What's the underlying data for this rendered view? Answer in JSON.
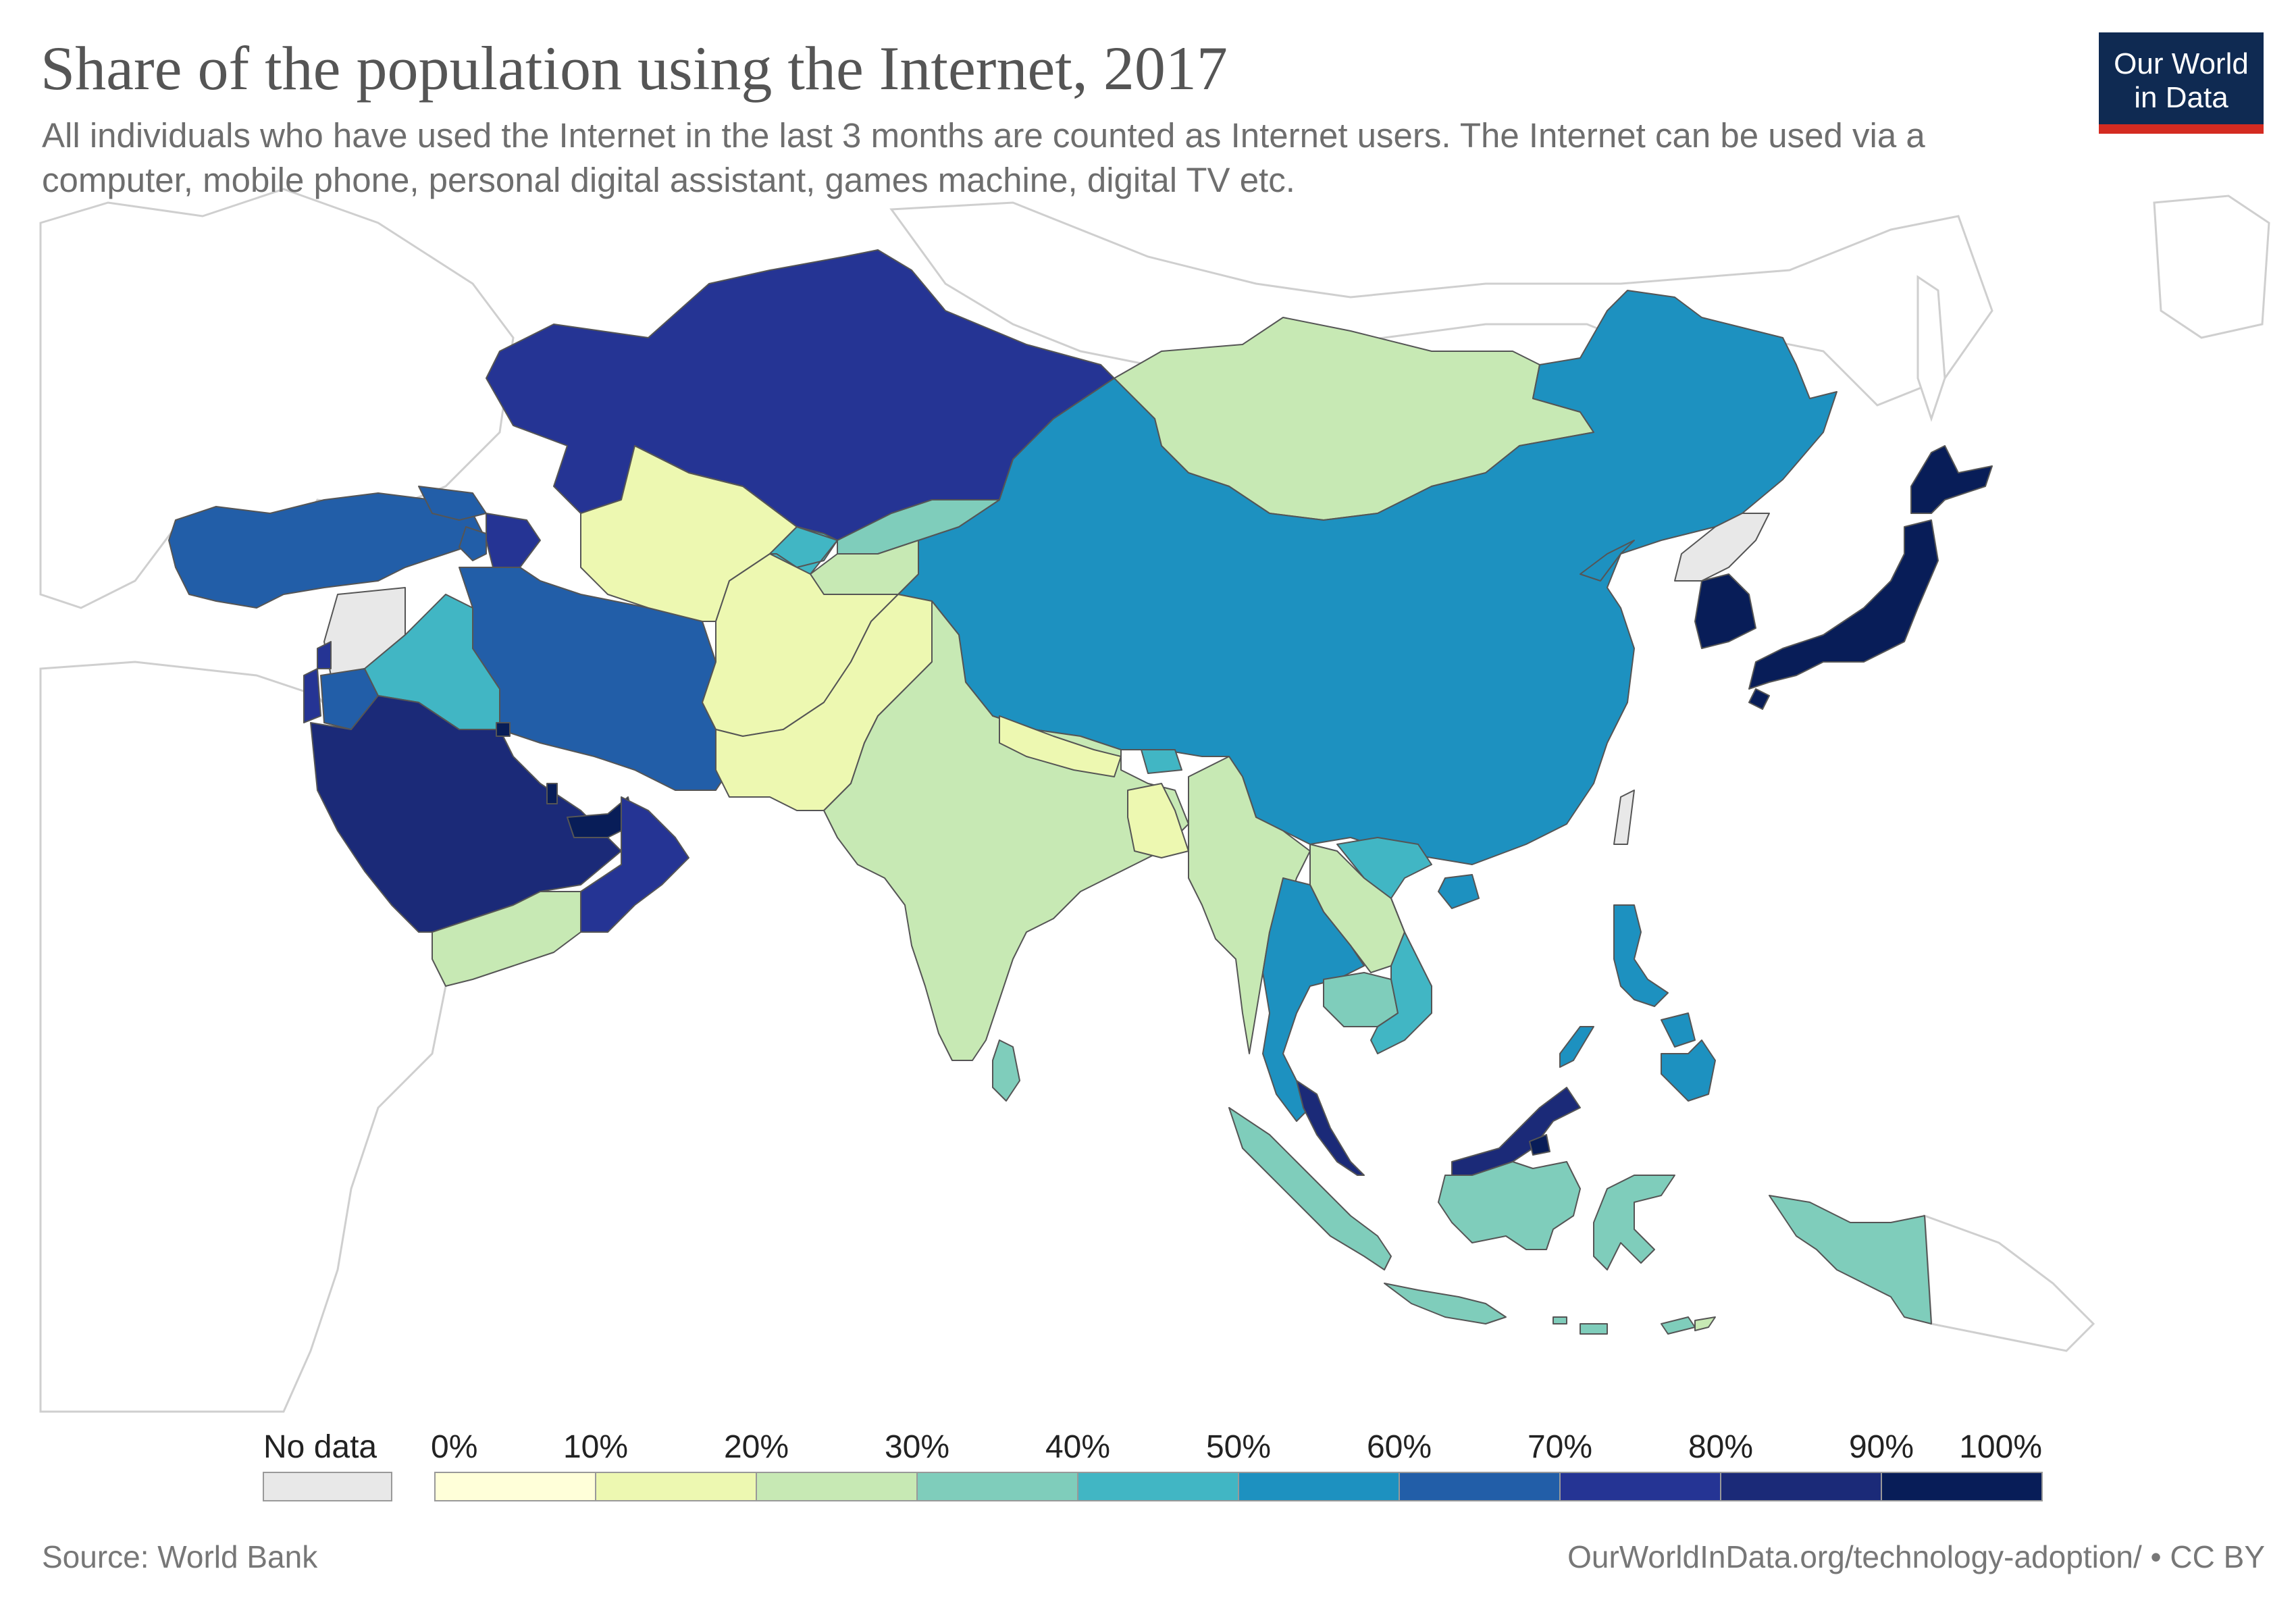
{
  "header": {
    "title": "Share of the population using the Internet, 2017",
    "subtitle": "All individuals who have used the Internet in the last 3 months are counted as Internet users. The Internet can be used via a computer, mobile phone, personal digital assistant, games machine, digital TV etc.",
    "logo_line1": "Our World",
    "logo_line2": "in Data"
  },
  "footer": {
    "source": "Source: World Bank",
    "url": "OurWorldInData.org/technology-adoption/ • CC BY"
  },
  "colors": {
    "no_data": "#e8e8e8",
    "background_land_outline": "#cfcfcf",
    "scale": [
      "#ffffd9",
      "#edf8b1",
      "#c7e9b4",
      "#7fcdbb",
      "#41b6c4",
      "#1d91c0",
      "#225ea8",
      "#253494",
      "#1b2a78",
      "#081d58"
    ],
    "logo_bg": "#0f2a52",
    "logo_bar": "#d42b21"
  },
  "legend": {
    "no_data_label": "No data",
    "ticks": [
      "0%",
      "10%",
      "20%",
      "30%",
      "40%",
      "50%",
      "60%",
      "70%",
      "80%",
      "90%",
      "100%"
    ]
  },
  "regions": [
    {
      "name": "kazakhstan",
      "bin": 7
    },
    {
      "name": "mongolia",
      "bin": 2
    },
    {
      "name": "china",
      "bin": 5
    },
    {
      "name": "north-korea",
      "bin": -1
    },
    {
      "name": "south-korea",
      "bin": 9
    },
    {
      "name": "japan",
      "bin": 9
    },
    {
      "name": "turkey",
      "bin": 6
    },
    {
      "name": "georgia",
      "bin": 6
    },
    {
      "name": "armenia",
      "bin": 6
    },
    {
      "name": "azerbaijan",
      "bin": 7
    },
    {
      "name": "syria",
      "bin": -1
    },
    {
      "name": "lebanon",
      "bin": 7
    },
    {
      "name": "israel",
      "bin": 7
    },
    {
      "name": "jordan",
      "bin": 6
    },
    {
      "name": "iraq",
      "bin": 4
    },
    {
      "name": "iran",
      "bin": 6
    },
    {
      "name": "saudi-arabia",
      "bin": 8
    },
    {
      "name": "kuwait",
      "bin": 9
    },
    {
      "name": "qatar",
      "bin": 9
    },
    {
      "name": "uae",
      "bin": 9
    },
    {
      "name": "oman",
      "bin": 7
    },
    {
      "name": "yemen",
      "bin": 2
    },
    {
      "name": "turkmenistan",
      "bin": 1
    },
    {
      "name": "uzbekistan",
      "bin": 4
    },
    {
      "name": "kyrgyzstan",
      "bin": 3
    },
    {
      "name": "tajikistan",
      "bin": 2
    },
    {
      "name": "afghanistan",
      "bin": 1
    },
    {
      "name": "pakistan",
      "bin": 1
    },
    {
      "name": "india",
      "bin": 2
    },
    {
      "name": "nepal",
      "bin": 1
    },
    {
      "name": "bhutan",
      "bin": 4
    },
    {
      "name": "bangladesh",
      "bin": 1
    },
    {
      "name": "myanmar",
      "bin": 2
    },
    {
      "name": "thailand",
      "bin": 5
    },
    {
      "name": "laos",
      "bin": 2
    },
    {
      "name": "cambodia",
      "bin": 3
    },
    {
      "name": "vietnam",
      "bin": 4
    },
    {
      "name": "malaysia",
      "bin": 8
    },
    {
      "name": "sri-lanka",
      "bin": 3
    },
    {
      "name": "indonesia",
      "bin": 3
    },
    {
      "name": "philippines",
      "bin": 5
    },
    {
      "name": "brunei",
      "bin": 9
    },
    {
      "name": "timor-leste",
      "bin": 2
    },
    {
      "name": "taiwan",
      "bin": -1
    },
    {
      "name": "hainan",
      "bin": 5
    }
  ]
}
